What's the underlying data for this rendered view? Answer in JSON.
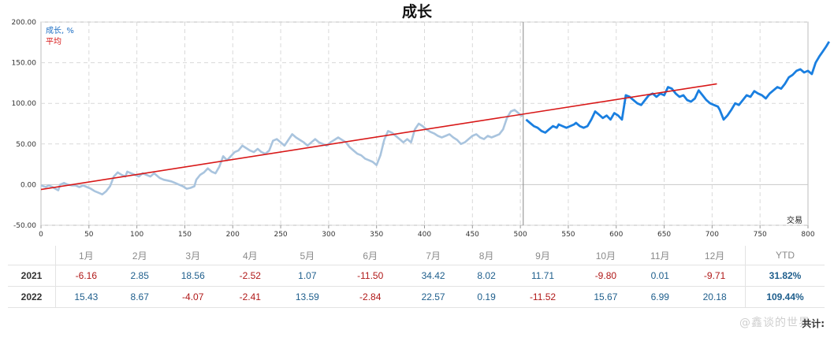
{
  "chart_data": {
    "type": "line",
    "title": "成长",
    "legend": [
      "成长, %",
      "平均"
    ],
    "legend_position": "top-left",
    "xlabel": "交易",
    "xlim": [
      0,
      800
    ],
    "ylim": [
      -50,
      200
    ],
    "x_ticks": [
      0,
      50,
      100,
      150,
      200,
      250,
      300,
      350,
      400,
      450,
      500,
      550,
      600,
      650,
      700,
      750,
      800
    ],
    "y_ticks": [
      "-50.00",
      "0.00",
      "50.00",
      "100.00",
      "150.00",
      "200.00"
    ],
    "grid": true,
    "divider_x": 503,
    "series": [
      {
        "name": "成长, %",
        "color_past": "#a9c4de",
        "color_recent": "#1a7fe0",
        "points": [
          [
            0,
            -1
          ],
          [
            5,
            -3
          ],
          [
            8,
            -1
          ],
          [
            12,
            -3
          ],
          [
            15,
            -5
          ],
          [
            18,
            -7
          ],
          [
            20,
            0
          ],
          [
            24,
            2
          ],
          [
            28,
            0
          ],
          [
            32,
            -1
          ],
          [
            36,
            -1
          ],
          [
            40,
            -3
          ],
          [
            44,
            -1
          ],
          [
            48,
            -3
          ],
          [
            52,
            -5
          ],
          [
            56,
            -8
          ],
          [
            60,
            -10
          ],
          [
            64,
            -12
          ],
          [
            68,
            -8
          ],
          [
            72,
            -2
          ],
          [
            76,
            10
          ],
          [
            80,
            15
          ],
          [
            84,
            12
          ],
          [
            88,
            10
          ],
          [
            90,
            16
          ],
          [
            94,
            14
          ],
          [
            98,
            12
          ],
          [
            102,
            10
          ],
          [
            106,
            14
          ],
          [
            110,
            12
          ],
          [
            114,
            10
          ],
          [
            118,
            14
          ],
          [
            120,
            12
          ],
          [
            124,
            8
          ],
          [
            128,
            6
          ],
          [
            132,
            5
          ],
          [
            136,
            4
          ],
          [
            140,
            2
          ],
          [
            144,
            0
          ],
          [
            148,
            -2
          ],
          [
            152,
            -5
          ],
          [
            156,
            -4
          ],
          [
            160,
            -2
          ],
          [
            162,
            6
          ],
          [
            166,
            12
          ],
          [
            170,
            15
          ],
          [
            174,
            20
          ],
          [
            178,
            16
          ],
          [
            182,
            14
          ],
          [
            186,
            22
          ],
          [
            190,
            35
          ],
          [
            194,
            30
          ],
          [
            198,
            35
          ],
          [
            202,
            40
          ],
          [
            206,
            42
          ],
          [
            210,
            48
          ],
          [
            214,
            45
          ],
          [
            218,
            42
          ],
          [
            222,
            40
          ],
          [
            226,
            44
          ],
          [
            230,
            40
          ],
          [
            234,
            38
          ],
          [
            238,
            42
          ],
          [
            242,
            54
          ],
          [
            246,
            56
          ],
          [
            250,
            52
          ],
          [
            254,
            48
          ],
          [
            258,
            55
          ],
          [
            262,
            62
          ],
          [
            266,
            58
          ],
          [
            270,
            55
          ],
          [
            274,
            52
          ],
          [
            278,
            48
          ],
          [
            282,
            52
          ],
          [
            286,
            56
          ],
          [
            290,
            52
          ],
          [
            294,
            50
          ],
          [
            298,
            48
          ],
          [
            302,
            52
          ],
          [
            306,
            55
          ],
          [
            310,
            58
          ],
          [
            314,
            55
          ],
          [
            318,
            52
          ],
          [
            322,
            46
          ],
          [
            326,
            42
          ],
          [
            330,
            38
          ],
          [
            334,
            36
          ],
          [
            338,
            32
          ],
          [
            342,
            30
          ],
          [
            346,
            28
          ],
          [
            350,
            24
          ],
          [
            354,
            36
          ],
          [
            358,
            55
          ],
          [
            362,
            66
          ],
          [
            366,
            64
          ],
          [
            370,
            60
          ],
          [
            374,
            56
          ],
          [
            378,
            52
          ],
          [
            382,
            56
          ],
          [
            386,
            52
          ],
          [
            390,
            68
          ],
          [
            394,
            75
          ],
          [
            398,
            72
          ],
          [
            402,
            68
          ],
          [
            406,
            65
          ],
          [
            410,
            63
          ],
          [
            414,
            60
          ],
          [
            418,
            58
          ],
          [
            422,
            60
          ],
          [
            426,
            62
          ],
          [
            430,
            58
          ],
          [
            434,
            55
          ],
          [
            438,
            50
          ],
          [
            442,
            52
          ],
          [
            446,
            56
          ],
          [
            450,
            60
          ],
          [
            454,
            62
          ],
          [
            458,
            58
          ],
          [
            462,
            56
          ],
          [
            466,
            60
          ],
          [
            470,
            58
          ],
          [
            474,
            60
          ],
          [
            478,
            62
          ],
          [
            482,
            68
          ],
          [
            486,
            82
          ],
          [
            490,
            90
          ],
          [
            494,
            92
          ],
          [
            498,
            88
          ],
          [
            502,
            84
          ],
          [
            506,
            80
          ],
          [
            510,
            76
          ],
          [
            514,
            72
          ],
          [
            518,
            70
          ],
          [
            522,
            66
          ],
          [
            526,
            64
          ],
          [
            530,
            68
          ],
          [
            534,
            72
          ],
          [
            538,
            70
          ],
          [
            540,
            74
          ],
          [
            544,
            72
          ],
          [
            548,
            70
          ],
          [
            552,
            72
          ],
          [
            556,
            74
          ],
          [
            558,
            76
          ],
          [
            562,
            72
          ],
          [
            566,
            70
          ],
          [
            570,
            72
          ],
          [
            574,
            80
          ],
          [
            578,
            90
          ],
          [
            582,
            86
          ],
          [
            586,
            82
          ],
          [
            590,
            85
          ],
          [
            594,
            80
          ],
          [
            598,
            88
          ],
          [
            602,
            85
          ],
          [
            606,
            80
          ],
          [
            610,
            110
          ],
          [
            614,
            108
          ],
          [
            618,
            104
          ],
          [
            622,
            100
          ],
          [
            626,
            98
          ],
          [
            630,
            104
          ],
          [
            634,
            110
          ],
          [
            638,
            112
          ],
          [
            642,
            108
          ],
          [
            646,
            112
          ],
          [
            650,
            110
          ],
          [
            654,
            120
          ],
          [
            658,
            118
          ],
          [
            662,
            112
          ],
          [
            666,
            108
          ],
          [
            670,
            110
          ],
          [
            674,
            104
          ],
          [
            678,
            102
          ],
          [
            682,
            106
          ],
          [
            686,
            116
          ],
          [
            690,
            110
          ],
          [
            694,
            104
          ],
          [
            698,
            100
          ],
          [
            702,
            98
          ],
          [
            706,
            96
          ],
          [
            708,
            92
          ],
          [
            712,
            80
          ],
          [
            716,
            85
          ],
          [
            720,
            92
          ],
          [
            724,
            100
          ],
          [
            728,
            98
          ],
          [
            732,
            104
          ],
          [
            736,
            110
          ],
          [
            740,
            108
          ],
          [
            744,
            115
          ],
          [
            748,
            112
          ],
          [
            752,
            110
          ],
          [
            756,
            106
          ],
          [
            760,
            112
          ],
          [
            764,
            116
          ],
          [
            768,
            120
          ],
          [
            772,
            118
          ],
          [
            776,
            124
          ],
          [
            780,
            132
          ],
          [
            784,
            135
          ],
          [
            788,
            140
          ],
          [
            792,
            142
          ],
          [
            796,
            138
          ],
          [
            800,
            140
          ],
          [
            804,
            136
          ],
          [
            808,
            150
          ],
          [
            812,
            158
          ],
          [
            815,
            163
          ],
          [
            819,
            170
          ],
          [
            822,
            176
          ]
        ]
      },
      {
        "name": "平均",
        "color": "#d81818",
        "from": [
          0,
          -6
        ],
        "to": [
          705,
          124
        ]
      }
    ]
  },
  "table": {
    "months": [
      "1月",
      "2月",
      "3月",
      "4月",
      "5月",
      "6月",
      "7月",
      "8月",
      "9月",
      "10月",
      "11月",
      "12月"
    ],
    "ytd_label": "YTD",
    "rows": [
      {
        "year": "2021",
        "values": [
          "-6.16",
          "2.85",
          "18.56",
          "-2.52",
          "1.07",
          "-11.50",
          "34.42",
          "8.02",
          "11.71",
          "-9.80",
          "0.01",
          "-9.71"
        ],
        "ytd": "31.82%"
      },
      {
        "year": "2022",
        "values": [
          "15.43",
          "8.67",
          "-4.07",
          "-2.41",
          "13.59",
          "-2.84",
          "22.57",
          "0.19",
          "-11.52",
          "15.67",
          "6.99",
          "20.18"
        ],
        "ytd": "109.44%"
      }
    ]
  },
  "footer": {
    "label": "共计:"
  },
  "watermark": "@鑫谈的世界",
  "colors": {
    "positive": "#1e5e8c",
    "negative": "#b01818",
    "grid": "#d6d6d6"
  }
}
